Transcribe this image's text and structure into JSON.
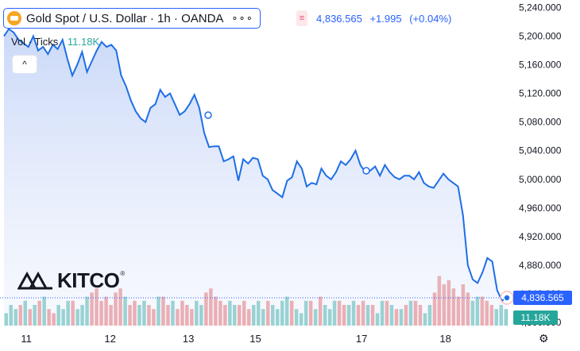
{
  "header": {
    "symbol": "Gold Spot / U.S. Dollar · 1h · OANDA",
    "more": "∘∘∘",
    "tag": "≡",
    "price": "4,836.565",
    "change": "+1.995",
    "change_pct": "(+0.04%)"
  },
  "volume_legend": {
    "label": "Vol · Ticks",
    "value": "11.18K"
  },
  "collapse_icon": "chevron-up-icon",
  "logo": {
    "text": "KITCO",
    "mark": "®"
  },
  "labels": {
    "last_price": "4,836.565",
    "last_volume": "11.18K"
  },
  "settings_icon": "gear-icon",
  "colors": {
    "line": "#1e6fe6",
    "up": "#26a69a",
    "down": "#ef5350",
    "accent": "#2962ff"
  },
  "chart_data": {
    "type": "line",
    "y_axis": {
      "ticks": [
        "5,240.000",
        "5,200.000",
        "5,160.000",
        "5,120.000",
        "5,080.000",
        "5,040.000",
        "5,000.000",
        "4,960.000",
        "4,920.000",
        "4,880.000",
        "4,840.000",
        "4,800.000"
      ],
      "range": [
        4800,
        5245
      ]
    },
    "x_axis": {
      "tick_labels": [
        {
          "label": "11",
          "index": 4
        },
        {
          "label": "12",
          "index": 19
        },
        {
          "label": "13",
          "index": 33
        },
        {
          "label": "15",
          "index": 45
        },
        {
          "label": "17",
          "index": 64
        },
        {
          "label": "18",
          "index": 79
        }
      ],
      "count": 91
    },
    "price": [
      5200,
      5210,
      5205,
      5195,
      5190,
      5185,
      5200,
      5180,
      5185,
      5175,
      5188,
      5182,
      5195,
      5168,
      5145,
      5160,
      5178,
      5150,
      5165,
      5180,
      5192,
      5185,
      5188,
      5180,
      5145,
      5130,
      5110,
      5095,
      5085,
      5080,
      5100,
      5105,
      5125,
      5115,
      5120,
      5105,
      5090,
      5095,
      5105,
      5118,
      5100,
      5065,
      5045,
      5046,
      5046,
      5025,
      5028,
      5032,
      4998,
      5028,
      5022,
      5030,
      5028,
      5005,
      5000,
      4985,
      4980,
      4975,
      4998,
      5003,
      5025,
      5015,
      4990,
      4995,
      4993,
      5015,
      5005,
      5000,
      5010,
      5025,
      5020,
      5028,
      5040,
      5020,
      5010,
      5012,
      5018,
      5005,
      5020,
      5010,
      5003,
      5000,
      5005,
      5005,
      5000,
      5010,
      4995,
      4990,
      4988,
      4998,
      5008
    ],
    "price_tail": [
      5000,
      4995,
      4990,
      4950,
      4880,
      4860,
      4855,
      4870,
      4890,
      4885,
      4845,
      4830,
      4836.565
    ],
    "volume_up": [
      3,
      5,
      4,
      2,
      6,
      3,
      5,
      4,
      7,
      3,
      2,
      5,
      4,
      6,
      3,
      4,
      5,
      7,
      3,
      5,
      4,
      6,
      2,
      3,
      5,
      7,
      4,
      3,
      5,
      6,
      4,
      3,
      7,
      5,
      4,
      6,
      3,
      5,
      4,
      3,
      6,
      5,
      4,
      3,
      2,
      5,
      4,
      6,
      5,
      3,
      4,
      3,
      5,
      6,
      4,
      3,
      5,
      4,
      6,
      7,
      5,
      4,
      3,
      6,
      5,
      4,
      3,
      5,
      4,
      6,
      3,
      4,
      5,
      6,
      4,
      3,
      5,
      4,
      3,
      6,
      4,
      5,
      3,
      4,
      2,
      6,
      5,
      4,
      3,
      5,
      4,
      3,
      5,
      6,
      4,
      3,
      5,
      4,
      6,
      7,
      5,
      4,
      3,
      4,
      5,
      4
    ],
    "volume_down": [
      2,
      4,
      3,
      5,
      2,
      4,
      3,
      6,
      2,
      4,
      3,
      5,
      4,
      2,
      6,
      3,
      5,
      4,
      8,
      9,
      6,
      7,
      5,
      8,
      9,
      7,
      5,
      6,
      4,
      3,
      5,
      4,
      6,
      7,
      5,
      3,
      4,
      6,
      5,
      4,
      3,
      5,
      8,
      9,
      7,
      6,
      5,
      4,
      3,
      5,
      6,
      4,
      3,
      5,
      4,
      6,
      5,
      3,
      4,
      5,
      6,
      4,
      3,
      5,
      6,
      4,
      7,
      5,
      4,
      3,
      6,
      5,
      4,
      3,
      5,
      6,
      4,
      5,
      3,
      4,
      6,
      5,
      4,
      3,
      5,
      4,
      6,
      5,
      3,
      4,
      8,
      12,
      10,
      11,
      9,
      7,
      10,
      8,
      6,
      5,
      7,
      6,
      5,
      4,
      5,
      4
    ],
    "last_price": 4836.565,
    "last_volume": "11.18K"
  }
}
